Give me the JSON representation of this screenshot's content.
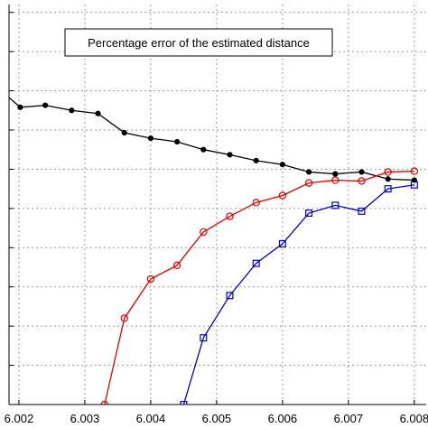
{
  "chart_data": {
    "type": "line",
    "title": "Percentage error of the estimated distance",
    "xlabel": "",
    "ylabel": "",
    "xlim": [
      6.00185,
      6.00818
    ],
    "ylim": [
      0,
      10.2
    ],
    "xticks": [
      6.002,
      6.003,
      6.004,
      6.005,
      6.006,
      6.007,
      6.008
    ],
    "xtick_labels": [
      "6.002",
      "6.003",
      "6.004",
      "6.005",
      "6.006",
      "6.007",
      "6.008"
    ],
    "grid": true,
    "colors": {
      "black": "#000000",
      "red": "#e00000",
      "blue": "#0000cc",
      "grid": "#9a9a9a",
      "axes": "#000000",
      "annotation_bg": "#ffffff"
    },
    "series": [
      {
        "color": "#000000",
        "marker": "filled-circle",
        "x": [
          6.0018,
          6.00202,
          6.0024,
          6.0028,
          6.0032,
          6.0036,
          6.004,
          6.0044,
          6.0048,
          6.0052,
          6.0056,
          6.006,
          6.0064,
          6.0068,
          6.0072,
          6.0076,
          6.008
        ],
        "values": [
          7.9,
          7.58,
          7.63,
          7.5,
          7.42,
          6.93,
          6.79,
          6.7,
          6.5,
          6.37,
          6.22,
          6.12,
          5.93,
          5.88,
          5.93,
          5.75,
          5.72
        ]
      },
      {
        "color": "#e00000",
        "marker": "open-circle",
        "x": [
          6.0033,
          6.0036,
          6.004,
          6.0044,
          6.0048,
          6.0052,
          6.0056,
          6.006,
          6.0064,
          6.0068,
          6.0072,
          6.0076,
          6.008
        ],
        "values": [
          0,
          2.2,
          3.2,
          3.55,
          4.4,
          4.8,
          5.15,
          5.33,
          5.65,
          5.72,
          5.7,
          5.93,
          5.95
        ]
      },
      {
        "color": "#0000cc",
        "marker": "open-square",
        "x": [
          6.0045,
          6.0048,
          6.0052,
          6.0056,
          6.006,
          6.0064,
          6.0068,
          6.0072,
          6.0076,
          6.008
        ],
        "values": [
          0,
          1.7,
          2.78,
          3.6,
          4.1,
          4.88,
          5.08,
          4.93,
          5.5,
          5.6
        ]
      }
    ]
  }
}
